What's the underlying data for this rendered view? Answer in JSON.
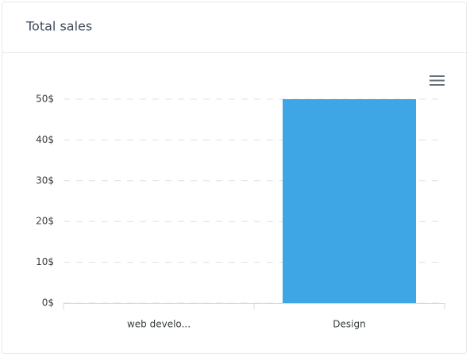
{
  "chart_data": {
    "type": "bar",
    "title": "Total sales",
    "categories": [
      "web develo...",
      "Design"
    ],
    "values": [
      0,
      50
    ],
    "color": "#3ea6e5",
    "ylim": [
      0,
      50
    ],
    "yticks": [
      {
        "value": 0,
        "label": "0$"
      },
      {
        "value": 10,
        "label": "10$"
      },
      {
        "value": 20,
        "label": "20$"
      },
      {
        "value": 30,
        "label": "30$"
      },
      {
        "value": 40,
        "label": "40$"
      },
      {
        "value": 50,
        "label": "50$"
      }
    ],
    "grid": true
  }
}
